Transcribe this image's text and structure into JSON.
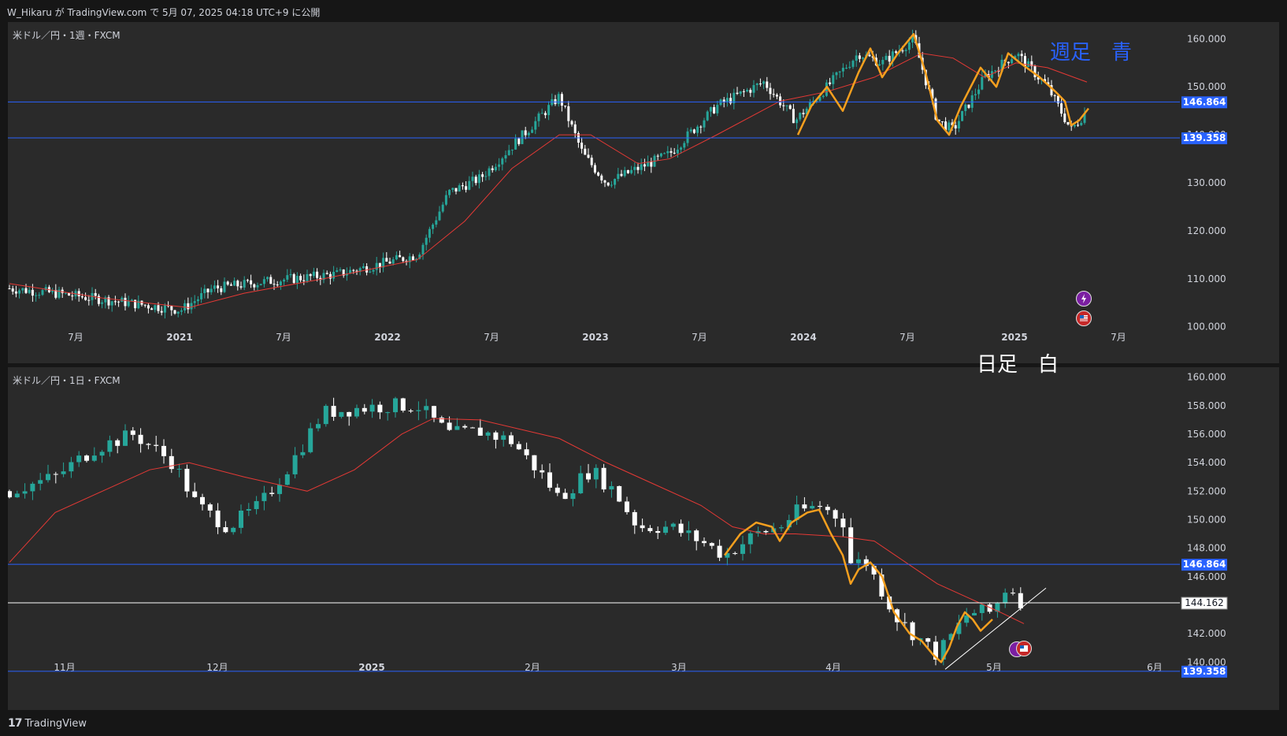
{
  "header": {
    "publish_text": "W_Hikaru が TradingView.com で 5月 07, 2025 04:18 UTC+9 に公開"
  },
  "weekly": {
    "symbol": "米ドル／円・1週・FXCM",
    "note": "週足　青",
    "note_color": "#2962ff",
    "price_ticks": [
      "160.000",
      "150.000",
      "140.000",
      "130.000",
      "120.000",
      "110.000",
      "100.000"
    ],
    "price_tick_values": [
      160,
      150,
      140,
      130,
      120,
      110,
      100
    ],
    "hline_labels": [
      "146.864",
      "139.358"
    ],
    "hline_values": [
      146.864,
      139.358
    ],
    "time_labels": [
      "7月",
      "2021",
      "7月",
      "2022",
      "7月",
      "2023",
      "7月",
      "2024",
      "7月",
      "2025",
      "7月"
    ],
    "yrange": [
      97,
      163.5
    ]
  },
  "daily": {
    "symbol": "米ドル／円・1日・FXCM",
    "note": "日足　白",
    "note_color": "#ffffff",
    "price_ticks": [
      "160.000",
      "158.000",
      "156.000",
      "154.000",
      "152.000",
      "150.000",
      "148.000",
      "146.000",
      "142.000",
      "140.000"
    ],
    "price_tick_values": [
      160,
      158,
      156,
      154,
      152,
      150,
      148,
      146,
      142,
      140
    ],
    "hline_labels": [
      "146.864",
      "139.358"
    ],
    "hline_values": [
      146.864,
      139.358
    ],
    "last_price_label": "144.162",
    "last_price_value": 144.162,
    "time_labels": [
      "11月",
      "12月",
      "2025",
      "2月",
      "3月",
      "4月",
      "5月",
      "6月"
    ],
    "yrange": [
      138.3,
      160.7
    ]
  },
  "colors": {
    "background": "#2a2a2a",
    "up": "#26a69a",
    "down": "#ffffff",
    "ma": "#e53935",
    "hline": "#2962ff",
    "orange": "#f59f1e",
    "trendline": "#ffffff"
  },
  "footer": {
    "brand": "TradingView",
    "logo_icon": "tradingview-logo-icon"
  },
  "icons": [
    "event-lightning-icon",
    "us-flag-icon"
  ]
}
